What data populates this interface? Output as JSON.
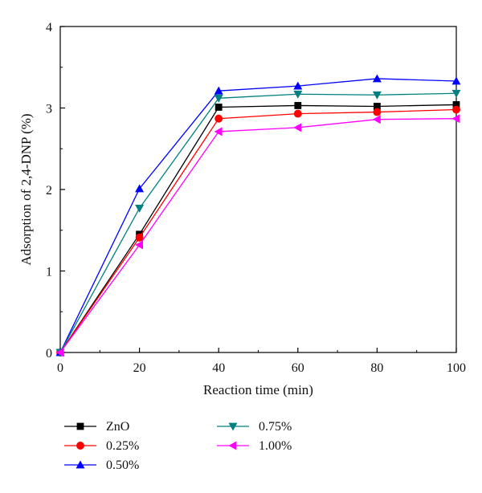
{
  "chart_data": {
    "type": "line",
    "xlabel": "Reaction time (min)",
    "ylabel": "Adsorption of 2,4-DNP (%)",
    "x": [
      0,
      20,
      40,
      60,
      80,
      100
    ],
    "xlim": [
      0,
      100
    ],
    "ylim": [
      0,
      4
    ],
    "xticks": [
      "0",
      "20",
      "40",
      "60",
      "80",
      "100"
    ],
    "yticks": [
      "0",
      "1",
      "2",
      "3",
      "4"
    ],
    "grid": false,
    "legend_position": "bottom",
    "series": [
      {
        "name": "ZnO",
        "color": "#000000",
        "marker": "square",
        "values": [
          0,
          1.45,
          3.01,
          3.03,
          3.02,
          3.04
        ]
      },
      {
        "name": "0.25%",
        "color": "#ff0000",
        "marker": "circle",
        "values": [
          0,
          1.41,
          2.87,
          2.93,
          2.95,
          2.98
        ]
      },
      {
        "name": "0.50%",
        "color": "#0000ff",
        "marker": "triangle-up",
        "values": [
          0,
          2.01,
          3.21,
          3.27,
          3.36,
          3.33
        ]
      },
      {
        "name": "0.75%",
        "color": "#008080",
        "marker": "triangle-down",
        "values": [
          0,
          1.77,
          3.12,
          3.17,
          3.16,
          3.18
        ]
      },
      {
        "name": "1.00%",
        "color": "#ff00ff",
        "marker": "triangle-left",
        "values": [
          0,
          1.32,
          2.71,
          2.76,
          2.86,
          2.87
        ]
      }
    ]
  }
}
